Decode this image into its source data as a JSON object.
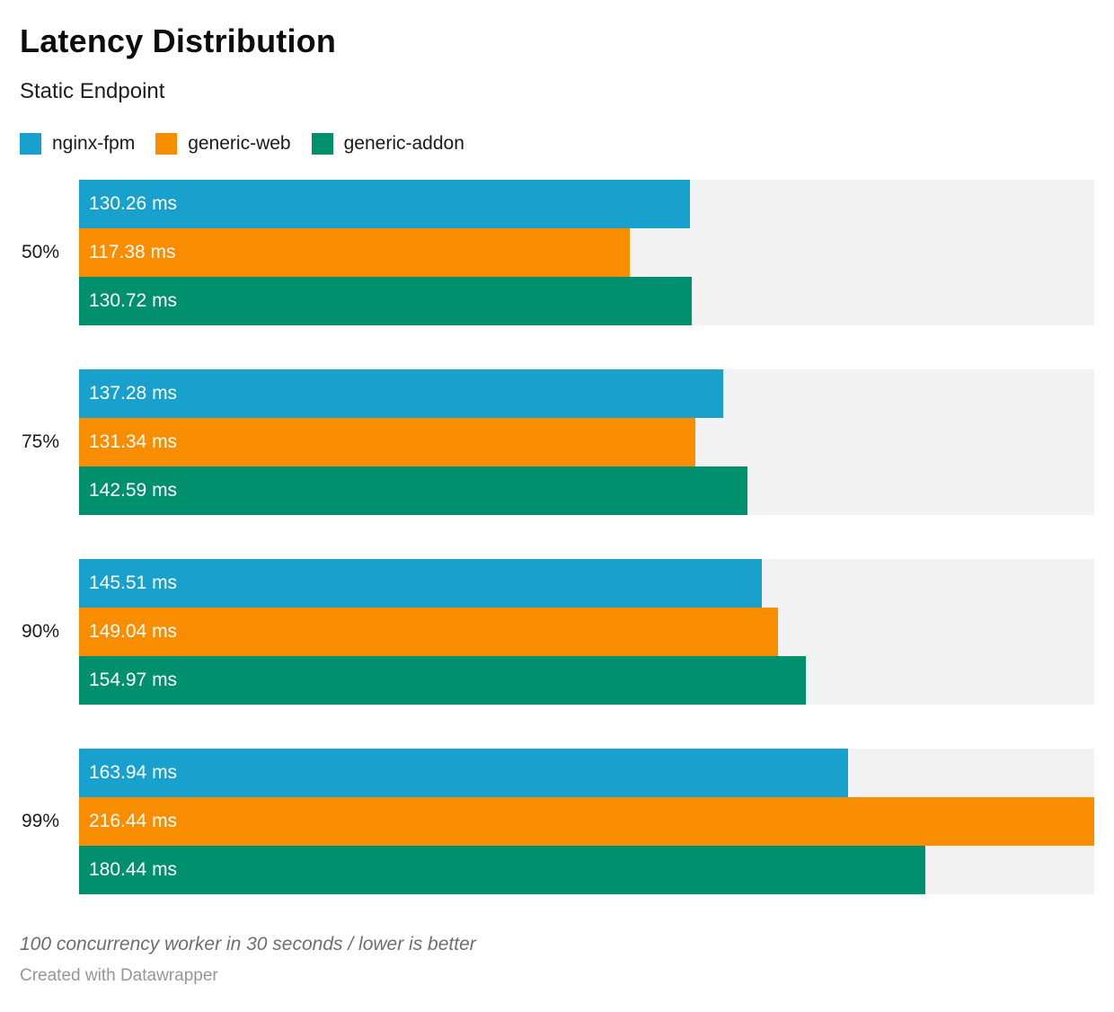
{
  "header": {
    "title": "Latency Distribution",
    "subtitle": "Static Endpoint"
  },
  "chart_data": {
    "type": "bar",
    "orientation": "horizontal",
    "title": "Latency Distribution",
    "subtitle": "Static Endpoint",
    "categories": [
      "50%",
      "75%",
      "90%",
      "99%"
    ],
    "series": [
      {
        "name": "nginx-fpm",
        "color": "#18a1cd",
        "values": [
          130.26,
          137.28,
          145.51,
          163.94
        ]
      },
      {
        "name": "generic-web",
        "color": "#f98d00",
        "values": [
          117.38,
          131.34,
          149.04,
          216.44
        ]
      },
      {
        "name": "generic-addon",
        "color": "#00906e",
        "values": [
          130.72,
          142.59,
          154.97,
          180.44
        ]
      }
    ],
    "value_suffix": " ms",
    "value_decimals": 2,
    "xlim": [
      0,
      216.44
    ],
    "track_color": "#f2f2f2",
    "grid": "off",
    "legend_position": "top",
    "value_labels": "inside-start"
  },
  "footer": {
    "note": "100 concurrency worker in 30 seconds / lower is better",
    "attribution": "Created with Datawrapper"
  }
}
